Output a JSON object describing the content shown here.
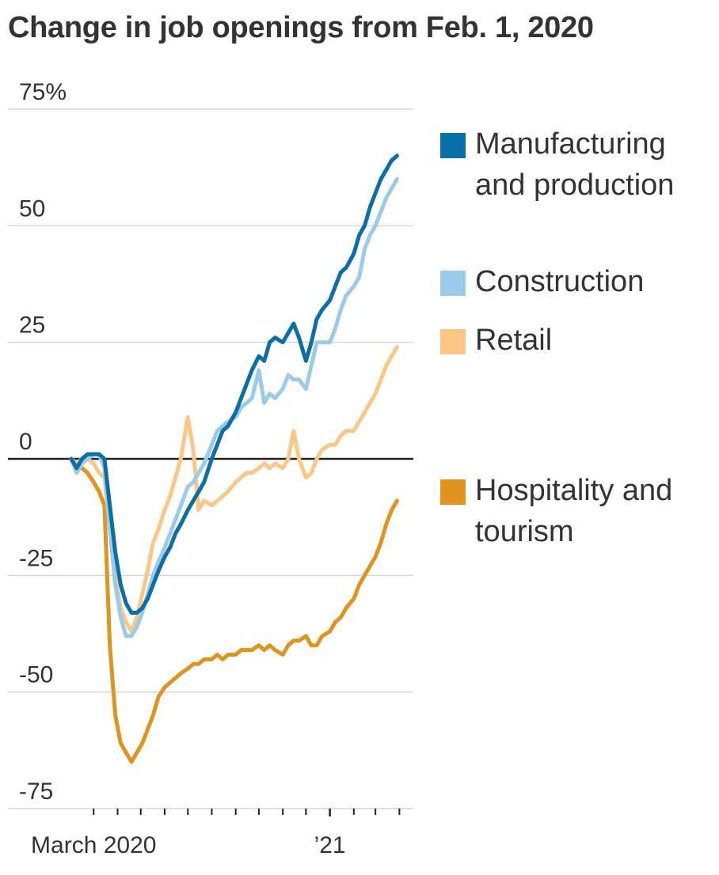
{
  "chart_data": {
    "type": "line",
    "title": "Change in job openings from Feb. 1, 2020",
    "y_unit_suffix": "%",
    "ylim": [
      -75,
      75
    ],
    "y_ticks": [
      75,
      50,
      25,
      0,
      -25,
      -50,
      -75
    ],
    "y_tick_labels": [
      "75%",
      "50",
      "25",
      "0",
      "-25",
      "-50",
      "-75"
    ],
    "x_range": [
      "2020-02-01",
      "2021-04-15"
    ],
    "x_labels": [
      {
        "date": "2020-03-01",
        "text": "March 2020"
      },
      {
        "date": "2021-01-01",
        "text": "’21"
      }
    ],
    "x_ticks": [
      "2020-03-01",
      "2020-04-01",
      "2020-05-01",
      "2020-06-01",
      "2020-07-01",
      "2020-08-01",
      "2020-09-01",
      "2020-10-01",
      "2020-11-01",
      "2020-12-01",
      "2021-01-01",
      "2021-02-01",
      "2021-03-01",
      "2021-04-01"
    ],
    "grid": true,
    "legend_position": "right",
    "series": [
      {
        "name": "Manufacturing and production",
        "color": "#0a6fa6",
        "points": [
          [
            "2020-02-01",
            0
          ],
          [
            "2020-02-08",
            -2
          ],
          [
            "2020-02-15",
            0
          ],
          [
            "2020-02-22",
            1
          ],
          [
            "2020-03-01",
            1
          ],
          [
            "2020-03-08",
            1
          ],
          [
            "2020-03-15",
            0
          ],
          [
            "2020-03-22",
            -10
          ],
          [
            "2020-03-29",
            -20
          ],
          [
            "2020-04-05",
            -27
          ],
          [
            "2020-04-12",
            -31
          ],
          [
            "2020-04-19",
            -33
          ],
          [
            "2020-04-26",
            -33
          ],
          [
            "2020-05-03",
            -32
          ],
          [
            "2020-05-10",
            -30
          ],
          [
            "2020-05-17",
            -27
          ],
          [
            "2020-05-24",
            -24
          ],
          [
            "2020-06-01",
            -21
          ],
          [
            "2020-06-08",
            -19
          ],
          [
            "2020-06-15",
            -16
          ],
          [
            "2020-06-22",
            -14
          ],
          [
            "2020-07-01",
            -11
          ],
          [
            "2020-07-08",
            -9
          ],
          [
            "2020-07-15",
            -7
          ],
          [
            "2020-07-22",
            -5
          ],
          [
            "2020-08-01",
            0
          ],
          [
            "2020-08-08",
            3
          ],
          [
            "2020-08-15",
            6
          ],
          [
            "2020-08-22",
            7
          ],
          [
            "2020-09-01",
            10
          ],
          [
            "2020-09-08",
            13
          ],
          [
            "2020-09-15",
            16
          ],
          [
            "2020-09-22",
            19
          ],
          [
            "2020-10-01",
            22
          ],
          [
            "2020-10-08",
            21
          ],
          [
            "2020-10-15",
            25
          ],
          [
            "2020-10-22",
            26
          ],
          [
            "2020-11-01",
            25
          ],
          [
            "2020-11-08",
            27
          ],
          [
            "2020-11-15",
            29
          ],
          [
            "2020-11-22",
            26
          ],
          [
            "2020-12-01",
            21
          ],
          [
            "2020-12-08",
            25
          ],
          [
            "2020-12-15",
            30
          ],
          [
            "2020-12-22",
            32
          ],
          [
            "2021-01-01",
            34
          ],
          [
            "2021-01-08",
            37
          ],
          [
            "2021-01-15",
            40
          ],
          [
            "2021-01-22",
            41
          ],
          [
            "2021-02-01",
            44
          ],
          [
            "2021-02-08",
            48
          ],
          [
            "2021-02-15",
            50
          ],
          [
            "2021-02-22",
            54
          ],
          [
            "2021-03-01",
            57
          ],
          [
            "2021-03-08",
            60
          ],
          [
            "2021-03-15",
            62
          ],
          [
            "2021-03-22",
            64
          ],
          [
            "2021-03-29",
            65
          ]
        ]
      },
      {
        "name": "Construction",
        "color": "#9ccbea",
        "points": [
          [
            "2020-02-01",
            0
          ],
          [
            "2020-02-08",
            -3
          ],
          [
            "2020-02-15",
            -1
          ],
          [
            "2020-02-22",
            0
          ],
          [
            "2020-03-01",
            1
          ],
          [
            "2020-03-08",
            1
          ],
          [
            "2020-03-15",
            -2
          ],
          [
            "2020-03-22",
            -15
          ],
          [
            "2020-03-29",
            -27
          ],
          [
            "2020-04-05",
            -34
          ],
          [
            "2020-04-12",
            -38
          ],
          [
            "2020-04-19",
            -38
          ],
          [
            "2020-04-26",
            -36
          ],
          [
            "2020-05-03",
            -33
          ],
          [
            "2020-05-10",
            -29
          ],
          [
            "2020-05-17",
            -25
          ],
          [
            "2020-05-24",
            -22
          ],
          [
            "2020-06-01",
            -19
          ],
          [
            "2020-06-08",
            -16
          ],
          [
            "2020-06-15",
            -13
          ],
          [
            "2020-06-22",
            -10
          ],
          [
            "2020-07-01",
            -6
          ],
          [
            "2020-07-08",
            -5
          ],
          [
            "2020-07-15",
            -3
          ],
          [
            "2020-07-22",
            -1
          ],
          [
            "2020-08-01",
            3
          ],
          [
            "2020-08-08",
            6
          ],
          [
            "2020-08-15",
            7
          ],
          [
            "2020-08-22",
            8
          ],
          [
            "2020-09-01",
            9
          ],
          [
            "2020-09-08",
            11
          ],
          [
            "2020-09-15",
            12
          ],
          [
            "2020-09-22",
            13
          ],
          [
            "2020-10-01",
            19
          ],
          [
            "2020-10-08",
            12
          ],
          [
            "2020-10-15",
            14
          ],
          [
            "2020-10-22",
            13
          ],
          [
            "2020-11-01",
            15
          ],
          [
            "2020-11-08",
            18
          ],
          [
            "2020-11-15",
            17
          ],
          [
            "2020-11-22",
            17
          ],
          [
            "2020-12-01",
            15
          ],
          [
            "2020-12-08",
            20
          ],
          [
            "2020-12-15",
            25
          ],
          [
            "2020-12-22",
            25
          ],
          [
            "2021-01-01",
            25
          ],
          [
            "2021-01-08",
            28
          ],
          [
            "2021-01-15",
            32
          ],
          [
            "2021-01-22",
            35
          ],
          [
            "2021-02-01",
            37
          ],
          [
            "2021-02-08",
            39
          ],
          [
            "2021-02-15",
            45
          ],
          [
            "2021-02-22",
            48
          ],
          [
            "2021-03-01",
            50
          ],
          [
            "2021-03-08",
            53
          ],
          [
            "2021-03-15",
            56
          ],
          [
            "2021-03-22",
            58
          ],
          [
            "2021-03-29",
            60
          ]
        ]
      },
      {
        "name": "Retail",
        "color": "#fcc687",
        "points": [
          [
            "2020-02-01",
            0
          ],
          [
            "2020-02-08",
            -1
          ],
          [
            "2020-02-15",
            0
          ],
          [
            "2020-02-22",
            0
          ],
          [
            "2020-03-01",
            -1
          ],
          [
            "2020-03-08",
            -3
          ],
          [
            "2020-03-15",
            -4
          ],
          [
            "2020-03-22",
            -15
          ],
          [
            "2020-03-29",
            -25
          ],
          [
            "2020-04-05",
            -32
          ],
          [
            "2020-04-12",
            -35
          ],
          [
            "2020-04-19",
            -37
          ],
          [
            "2020-04-26",
            -34
          ],
          [
            "2020-05-03",
            -29
          ],
          [
            "2020-05-10",
            -24
          ],
          [
            "2020-05-17",
            -18
          ],
          [
            "2020-05-24",
            -15
          ],
          [
            "2020-06-01",
            -11
          ],
          [
            "2020-06-08",
            -8
          ],
          [
            "2020-06-15",
            -4
          ],
          [
            "2020-06-22",
            0
          ],
          [
            "2020-07-01",
            9
          ],
          [
            "2020-07-08",
            2
          ],
          [
            "2020-07-15",
            -11
          ],
          [
            "2020-07-22",
            -9
          ],
          [
            "2020-08-01",
            -10
          ],
          [
            "2020-08-08",
            -9
          ],
          [
            "2020-08-15",
            -8
          ],
          [
            "2020-08-22",
            -7
          ],
          [
            "2020-09-01",
            -5
          ],
          [
            "2020-09-08",
            -4
          ],
          [
            "2020-09-15",
            -3
          ],
          [
            "2020-09-22",
            -3
          ],
          [
            "2020-10-01",
            -2
          ],
          [
            "2020-10-08",
            -1
          ],
          [
            "2020-10-15",
            -2
          ],
          [
            "2020-10-22",
            -1
          ],
          [
            "2020-11-01",
            -2
          ],
          [
            "2020-11-08",
            0
          ],
          [
            "2020-11-15",
            6
          ],
          [
            "2020-11-22",
            0
          ],
          [
            "2020-12-01",
            -4
          ],
          [
            "2020-12-08",
            -3
          ],
          [
            "2020-12-15",
            0
          ],
          [
            "2020-12-22",
            2
          ],
          [
            "2021-01-01",
            3
          ],
          [
            "2021-01-08",
            3
          ],
          [
            "2021-01-15",
            5
          ],
          [
            "2021-01-22",
            6
          ],
          [
            "2021-02-01",
            6
          ],
          [
            "2021-02-08",
            8
          ],
          [
            "2021-02-15",
            10
          ],
          [
            "2021-02-22",
            12
          ],
          [
            "2021-03-01",
            14
          ],
          [
            "2021-03-08",
            17
          ],
          [
            "2021-03-15",
            20
          ],
          [
            "2021-03-22",
            22
          ],
          [
            "2021-03-29",
            24
          ]
        ]
      },
      {
        "name": "Hospitality and tourism",
        "color": "#e0941f",
        "points": [
          [
            "2020-02-01",
            0
          ],
          [
            "2020-02-08",
            -1
          ],
          [
            "2020-02-15",
            -2
          ],
          [
            "2020-02-22",
            -3
          ],
          [
            "2020-03-01",
            -5
          ],
          [
            "2020-03-08",
            -7
          ],
          [
            "2020-03-15",
            -10
          ],
          [
            "2020-03-22",
            -40
          ],
          [
            "2020-03-29",
            -55
          ],
          [
            "2020-04-05",
            -61
          ],
          [
            "2020-04-12",
            -63
          ],
          [
            "2020-04-19",
            -65
          ],
          [
            "2020-04-26",
            -63
          ],
          [
            "2020-05-03",
            -61
          ],
          [
            "2020-05-10",
            -58
          ],
          [
            "2020-05-17",
            -55
          ],
          [
            "2020-05-24",
            -51
          ],
          [
            "2020-06-01",
            -49
          ],
          [
            "2020-06-08",
            -48
          ],
          [
            "2020-06-15",
            -47
          ],
          [
            "2020-06-22",
            -46
          ],
          [
            "2020-07-01",
            -45
          ],
          [
            "2020-07-08",
            -44
          ],
          [
            "2020-07-15",
            -44
          ],
          [
            "2020-07-22",
            -43
          ],
          [
            "2020-08-01",
            -43
          ],
          [
            "2020-08-08",
            -42
          ],
          [
            "2020-08-15",
            -43
          ],
          [
            "2020-08-22",
            -42
          ],
          [
            "2020-09-01",
            -42
          ],
          [
            "2020-09-08",
            -41
          ],
          [
            "2020-09-15",
            -41
          ],
          [
            "2020-09-22",
            -41
          ],
          [
            "2020-10-01",
            -40
          ],
          [
            "2020-10-08",
            -41
          ],
          [
            "2020-10-15",
            -40
          ],
          [
            "2020-10-22",
            -41
          ],
          [
            "2020-11-01",
            -42
          ],
          [
            "2020-11-08",
            -40
          ],
          [
            "2020-11-15",
            -39
          ],
          [
            "2020-11-22",
            -39
          ],
          [
            "2020-12-01",
            -38
          ],
          [
            "2020-12-08",
            -40
          ],
          [
            "2020-12-15",
            -40
          ],
          [
            "2020-12-22",
            -38
          ],
          [
            "2021-01-01",
            -37
          ],
          [
            "2021-01-08",
            -35
          ],
          [
            "2021-01-15",
            -34
          ],
          [
            "2021-01-22",
            -32
          ],
          [
            "2021-02-01",
            -30
          ],
          [
            "2021-02-08",
            -27
          ],
          [
            "2021-02-15",
            -25
          ],
          [
            "2021-02-22",
            -23
          ],
          [
            "2021-03-01",
            -21
          ],
          [
            "2021-03-08",
            -18
          ],
          [
            "2021-03-15",
            -14
          ],
          [
            "2021-03-22",
            -11
          ],
          [
            "2021-03-29",
            -9
          ]
        ]
      }
    ]
  }
}
